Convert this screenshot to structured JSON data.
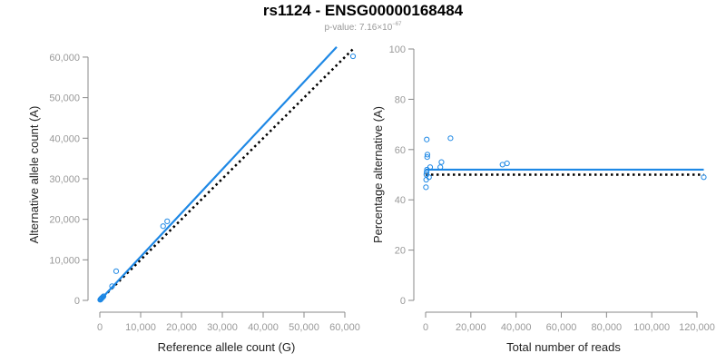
{
  "header": {
    "title": "rs1124 - ENSG00000168484",
    "pvalue_prefix": "p-value: ",
    "pvalue_mantissa": "7.16",
    "pvalue_times": "×10",
    "pvalue_exponent": "−67"
  },
  "colors": {
    "series": "#1e88e5",
    "axis": "#888888",
    "reference_line": "#000000",
    "tick_label": "#999999",
    "axis_label": "#222222"
  },
  "chart_data": [
    {
      "type": "scatter",
      "xlabel": "Reference allele count (G)",
      "ylabel": "Alternative allele count (A)",
      "xlim": [
        0,
        62000
      ],
      "ylim": [
        0,
        62000
      ],
      "xticks": [
        0,
        10000,
        20000,
        30000,
        40000,
        50000,
        60000
      ],
      "yticks": [
        0,
        10000,
        20000,
        30000,
        40000,
        50000,
        60000
      ],
      "xtick_labels": [
        "0",
        "10,000",
        "20,000",
        "30,000",
        "40,000",
        "50,000",
        "60,000"
      ],
      "ytick_labels": [
        "0",
        "10,000",
        "20,000",
        "30,000",
        "40,000",
        "50,000",
        "60,000"
      ],
      "grid": false,
      "points": [
        {
          "x": 100,
          "y": 150
        },
        {
          "x": 200,
          "y": 250
        },
        {
          "x": 300,
          "y": 400
        },
        {
          "x": 400,
          "y": 500
        },
        {
          "x": 500,
          "y": 600
        },
        {
          "x": 700,
          "y": 800
        },
        {
          "x": 900,
          "y": 1000
        },
        {
          "x": 3000,
          "y": 3500
        },
        {
          "x": 4000,
          "y": 7200
        },
        {
          "x": 15500,
          "y": 18300
        },
        {
          "x": 16500,
          "y": 19500
        },
        {
          "x": 62000,
          "y": 60200
        }
      ],
      "fit_line": {
        "x": [
          0,
          58000
        ],
        "y": [
          0,
          62500
        ]
      },
      "reference_line": {
        "x": [
          0,
          62000
        ],
        "y": [
          0,
          62000
        ]
      }
    },
    {
      "type": "scatter",
      "xlabel": "Total number of reads",
      "ylabel": "Percentage alternative (A)",
      "xlim": [
        0,
        122000
      ],
      "ylim": [
        0,
        100
      ],
      "xticks": [
        0,
        20000,
        40000,
        60000,
        80000,
        100000,
        120000
      ],
      "yticks": [
        0,
        20,
        40,
        60,
        80,
        100
      ],
      "xtick_labels": [
        "0",
        "20,000",
        "40,000",
        "60,000",
        "80,000",
        "100,000",
        "120,000"
      ],
      "ytick_labels": [
        "0",
        "20",
        "40",
        "60",
        "80",
        "100"
      ],
      "grid": false,
      "points": [
        {
          "x": 150,
          "y": 45
        },
        {
          "x": 250,
          "y": 48
        },
        {
          "x": 350,
          "y": 50
        },
        {
          "x": 450,
          "y": 51
        },
        {
          "x": 600,
          "y": 52
        },
        {
          "x": 700,
          "y": 57
        },
        {
          "x": 800,
          "y": 58
        },
        {
          "x": 500,
          "y": 64
        },
        {
          "x": 1500,
          "y": 49
        },
        {
          "x": 2000,
          "y": 53
        },
        {
          "x": 6500,
          "y": 53
        },
        {
          "x": 7000,
          "y": 55
        },
        {
          "x": 11000,
          "y": 64.5
        },
        {
          "x": 34000,
          "y": 54
        },
        {
          "x": 36000,
          "y": 54.5
        },
        {
          "x": 123000,
          "y": 49
        }
      ],
      "fit_line": {
        "x": [
          0,
          123000
        ],
        "y": [
          52,
          52
        ]
      },
      "reference_line": {
        "x": [
          0,
          123000
        ],
        "y": [
          50,
          50
        ]
      }
    }
  ]
}
